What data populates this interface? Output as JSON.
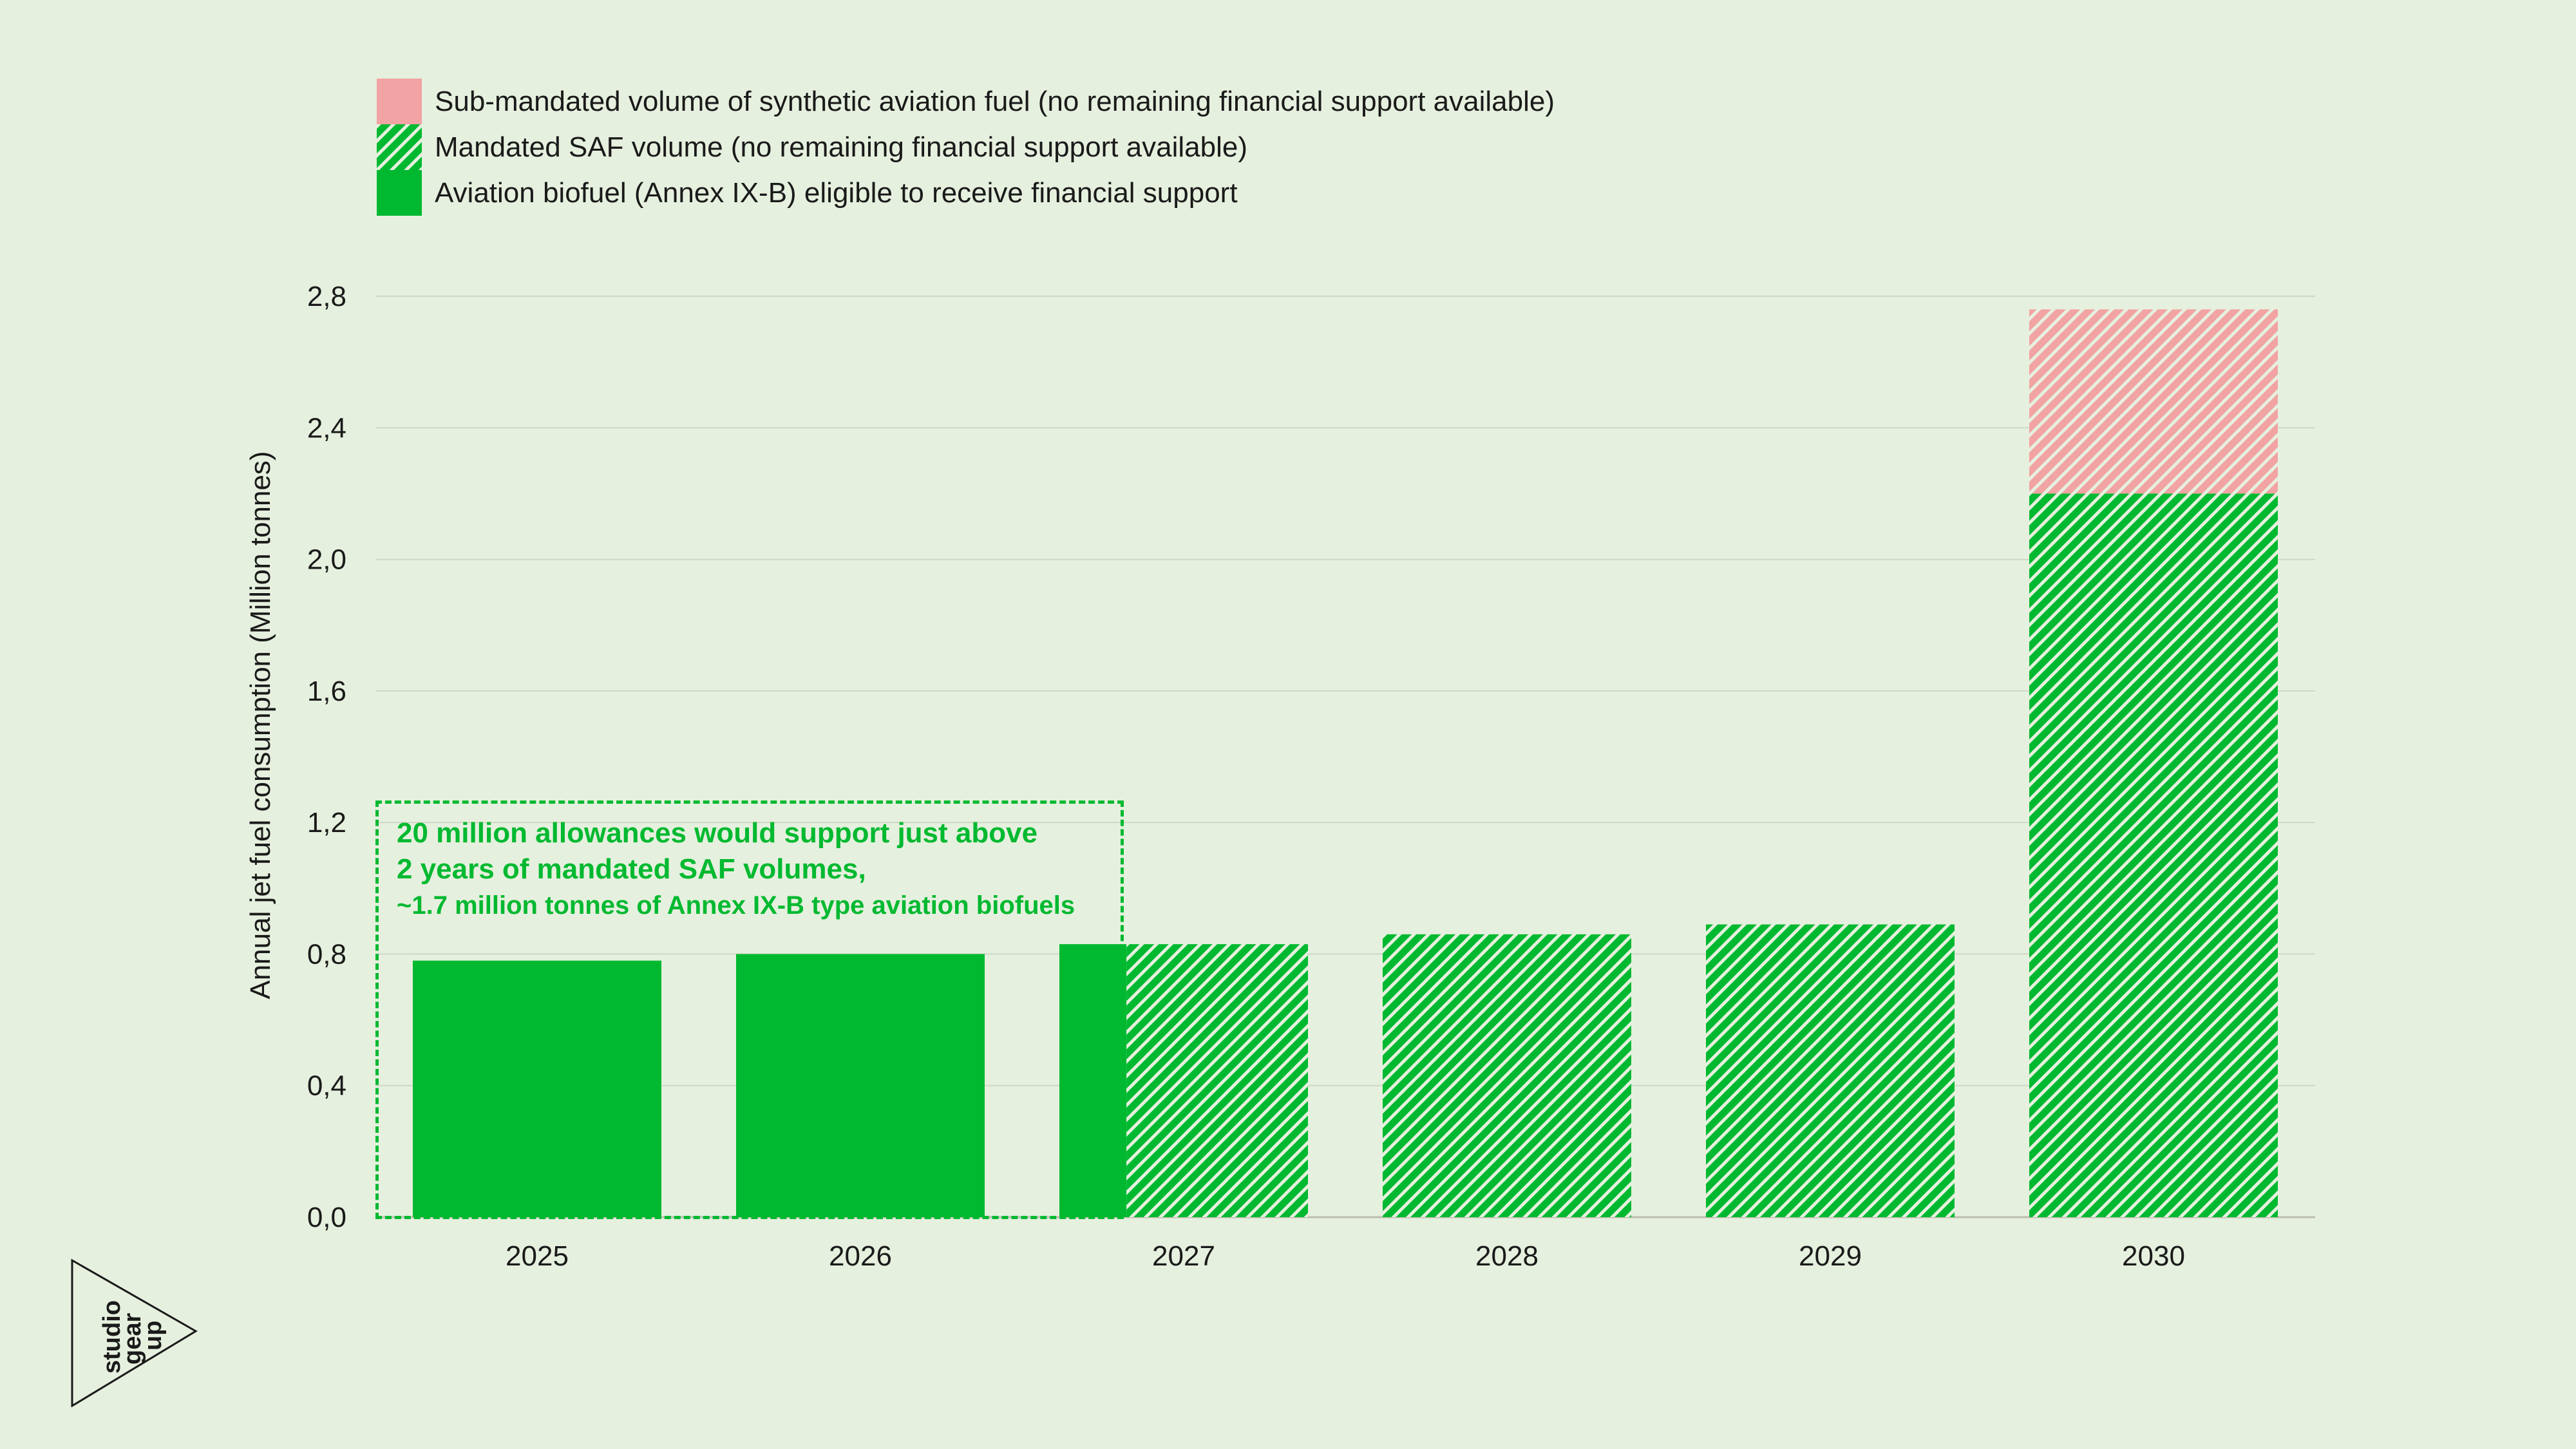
{
  "legend": {
    "items": [
      {
        "label": "Sub-mandated volume of synthetic aviation fuel (no remaining financial support available)",
        "pattern": "hatched",
        "color": "#f2a3a3"
      },
      {
        "label": "Mandated SAF volume (no remaining financial support available)",
        "pattern": "hatched",
        "color": "#00b930"
      },
      {
        "label": "Aviation biofuel (Annex IX-B) eligible to receive financial support",
        "pattern": "solid",
        "color": "#00b930"
      }
    ]
  },
  "annotation": {
    "line1": "20 million allowances would support just above",
    "line2": "2 years of mandated SAF volumes,",
    "line3": "~1.7 million tonnes of Annex IX-B type aviation biofuels"
  },
  "logo": {
    "text": [
      "studio",
      "gear",
      "up"
    ]
  },
  "chart_data": {
    "type": "bar",
    "stacked": true,
    "ylabel": "Annual jet fuel consumption (Million tonnes)",
    "xlabel": "",
    "ylim": [
      0,
      2.8
    ],
    "yticks": [
      "0,0",
      "0,4",
      "0,8",
      "1,2",
      "1,6",
      "2,0",
      "2,4",
      "2,8"
    ],
    "categories": [
      "2025",
      "2026",
      "2027",
      "2028",
      "2029",
      "2030"
    ],
    "grid": true,
    "legend_position": "top-left",
    "colors": {
      "green": "#00b930",
      "pink": "#f2a3a3"
    },
    "bars": [
      {
        "category": "2025",
        "total": 0.78,
        "segments": [
          {
            "series": "Aviation biofuel (Annex IX-B) eligible to receive financial support",
            "from": 0,
            "to": 0.78
          }
        ]
      },
      {
        "category": "2026",
        "total": 0.8,
        "segments": [
          {
            "series": "Aviation biofuel (Annex IX-B) eligible to receive financial support",
            "from": 0,
            "to": 0.8
          }
        ]
      },
      {
        "category": "2027",
        "total": 0.83,
        "split_fraction_solid": 0.27,
        "segments": [
          {
            "series": "Aviation biofuel (Annex IX-B) eligible to receive financial support",
            "from": 0,
            "to": 0.83
          },
          {
            "series": "Mandated SAF volume (no remaining financial support available)",
            "from": 0,
            "to": 0.83
          }
        ]
      },
      {
        "category": "2028",
        "total": 0.86,
        "segments": [
          {
            "series": "Mandated SAF volume (no remaining financial support available)",
            "from": 0,
            "to": 0.86
          }
        ]
      },
      {
        "category": "2029",
        "total": 0.89,
        "segments": [
          {
            "series": "Mandated SAF volume (no remaining financial support available)",
            "from": 0,
            "to": 0.89
          }
        ]
      },
      {
        "category": "2030",
        "total": 2.76,
        "segments": [
          {
            "series": "Mandated SAF volume (no remaining financial support available)",
            "from": 0,
            "to": 2.2
          },
          {
            "series": "Sub-mandated volume of synthetic aviation fuel (no remaining financial support available)",
            "from": 2.2,
            "to": 2.76
          }
        ]
      }
    ]
  }
}
